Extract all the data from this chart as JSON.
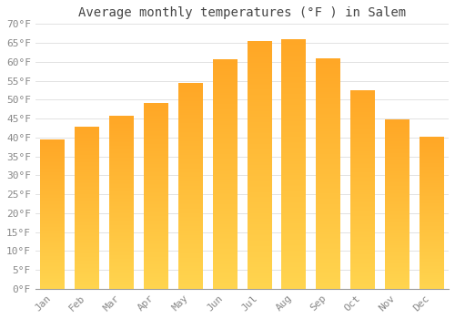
{
  "title": "Average monthly temperatures (°F ) in Salem",
  "months": [
    "Jan",
    "Feb",
    "Mar",
    "Apr",
    "May",
    "Jun",
    "Jul",
    "Aug",
    "Sep",
    "Oct",
    "Nov",
    "Dec"
  ],
  "temperatures": [
    39.5,
    42.8,
    45.7,
    49.0,
    54.3,
    60.5,
    65.3,
    65.8,
    60.8,
    52.5,
    44.7,
    40.1
  ],
  "bar_color_main": "#FFA726",
  "bar_color_light": "#FFD54F",
  "ylim": [
    0,
    70
  ],
  "yticks": [
    0,
    5,
    10,
    15,
    20,
    25,
    30,
    35,
    40,
    45,
    50,
    55,
    60,
    65,
    70
  ],
  "ytick_labels": [
    "0°F",
    "5°F",
    "10°F",
    "15°F",
    "20°F",
    "25°F",
    "30°F",
    "35°F",
    "40°F",
    "45°F",
    "50°F",
    "55°F",
    "60°F",
    "65°F",
    "70°F"
  ],
  "background_color": "#FFFFFF",
  "grid_color": "#DDDDDD",
  "title_fontsize": 10,
  "tick_fontsize": 8,
  "title_color": "#444444",
  "tick_color": "#888888"
}
